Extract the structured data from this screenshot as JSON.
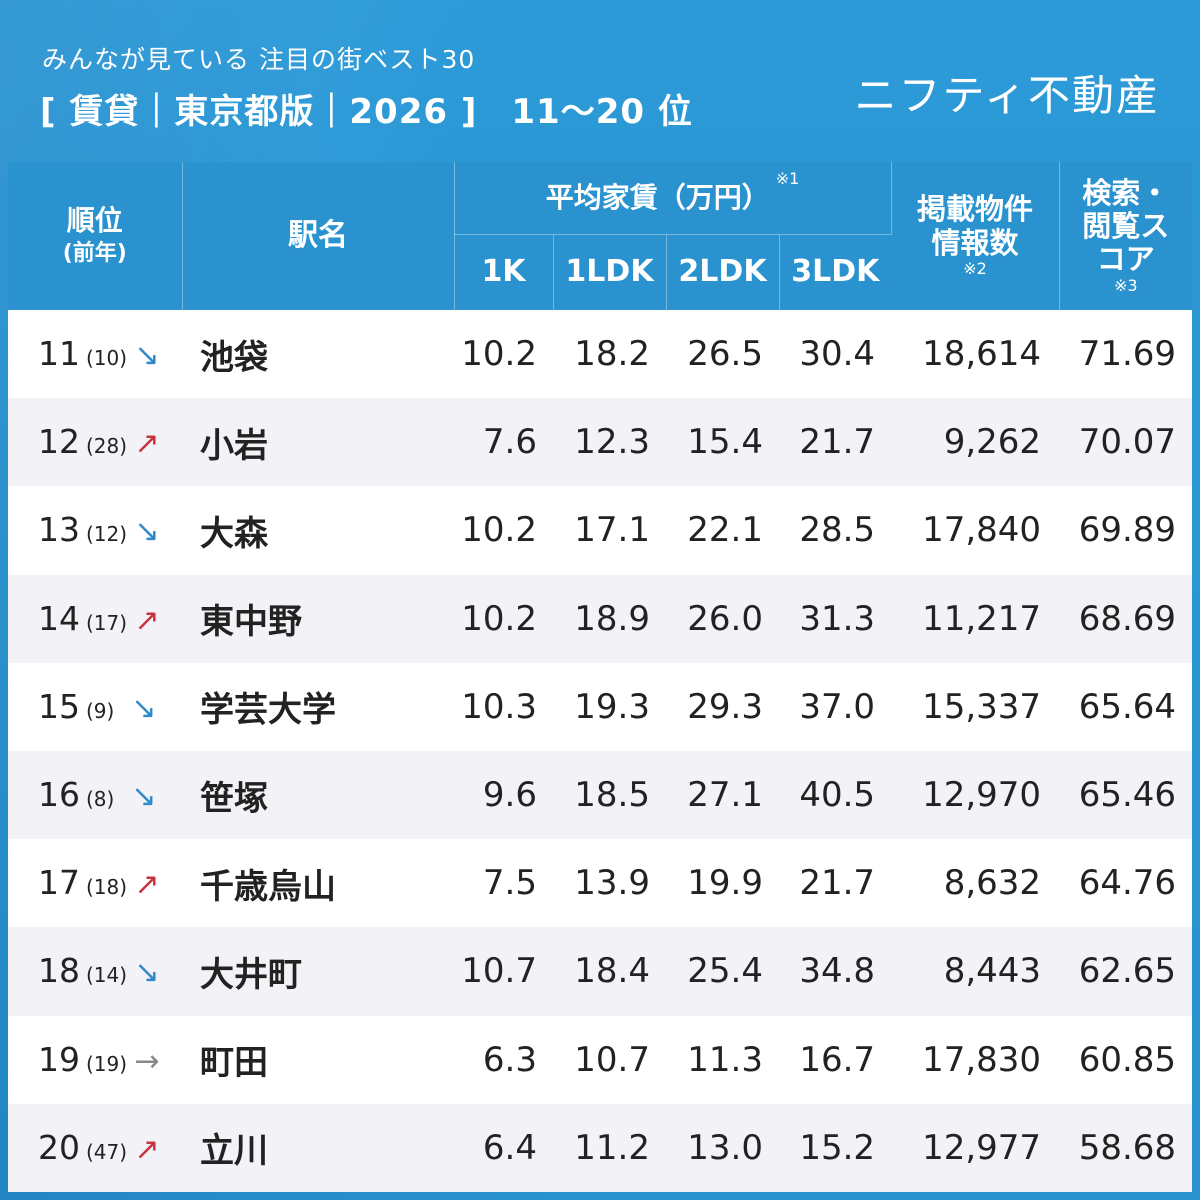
{
  "header": {
    "subtitle": "みんなが見ている 注目の街ベスト30",
    "title_main": "[ 賃貸｜東京都版｜2026 ]",
    "title_range": "11～20 位",
    "brand": "ニフティ不動産"
  },
  "table": {
    "col_rank": "順位",
    "col_rank_sub": "(前年)",
    "col_station": "駅名",
    "col_rent": "平均家賃（万円）",
    "col_rent_note": "※1",
    "col_1k": "1K",
    "col_1ldk": "1LDK",
    "col_2ldk": "2LDK",
    "col_3ldk": "3LDK",
    "col_listings": "掲載物件情報数",
    "col_listings_note": "※2",
    "col_score": "検索・閲覧スコア",
    "col_score_note": "※3",
    "rows": [
      {
        "rank": "11",
        "prev": "(10)",
        "trend": "down",
        "trend_icon": "↘",
        "station": "池袋",
        "r1k": "10.2",
        "r1ldk": "18.2",
        "r2ldk": "26.5",
        "r3ldk": "30.4",
        "listings": "18,614",
        "score": "71.69"
      },
      {
        "rank": "12",
        "prev": "(28)",
        "trend": "up",
        "trend_icon": "↗",
        "station": "小岩",
        "r1k": "7.6",
        "r1ldk": "12.3",
        "r2ldk": "15.4",
        "r3ldk": "21.7",
        "listings": "9,262",
        "score": "70.07"
      },
      {
        "rank": "13",
        "prev": "(12)",
        "trend": "down",
        "trend_icon": "↘",
        "station": "大森",
        "r1k": "10.2",
        "r1ldk": "17.1",
        "r2ldk": "22.1",
        "r3ldk": "28.5",
        "listings": "17,840",
        "score": "69.89"
      },
      {
        "rank": "14",
        "prev": "(17)",
        "trend": "up",
        "trend_icon": "↗",
        "station": "東中野",
        "r1k": "10.2",
        "r1ldk": "18.9",
        "r2ldk": "26.0",
        "r3ldk": "31.3",
        "listings": "11,217",
        "score": "68.69"
      },
      {
        "rank": "15",
        "prev": "(9)",
        "trend": "down",
        "trend_icon": "↘",
        "station": "学芸大学",
        "r1k": "10.3",
        "r1ldk": "19.3",
        "r2ldk": "29.3",
        "r3ldk": "37.0",
        "listings": "15,337",
        "score": "65.64"
      },
      {
        "rank": "16",
        "prev": "(8)",
        "trend": "down",
        "trend_icon": "↘",
        "station": "笹塚",
        "r1k": "9.6",
        "r1ldk": "18.5",
        "r2ldk": "27.1",
        "r3ldk": "40.5",
        "listings": "12,970",
        "score": "65.46"
      },
      {
        "rank": "17",
        "prev": "(18)",
        "trend": "up",
        "trend_icon": "↗",
        "station": "千歳烏山",
        "r1k": "7.5",
        "r1ldk": "13.9",
        "r2ldk": "19.9",
        "r3ldk": "21.7",
        "listings": "8,632",
        "score": "64.76"
      },
      {
        "rank": "18",
        "prev": "(14)",
        "trend": "down",
        "trend_icon": "↘",
        "station": "大井町",
        "r1k": "10.7",
        "r1ldk": "18.4",
        "r2ldk": "25.4",
        "r3ldk": "34.8",
        "listings": "8,443",
        "score": "62.65"
      },
      {
        "rank": "19",
        "prev": "(19)",
        "trend": "flat",
        "trend_icon": "→",
        "station": "町田",
        "r1k": "6.3",
        "r1ldk": "10.7",
        "r2ldk": "11.3",
        "r3ldk": "16.7",
        "listings": "17,830",
        "score": "60.85"
      },
      {
        "rank": "20",
        "prev": "(47)",
        "trend": "up",
        "trend_icon": "↗",
        "station": "立川",
        "r1k": "6.4",
        "r1ldk": "11.2",
        "r2ldk": "13.0",
        "r3ldk": "15.2",
        "listings": "12,977",
        "score": "58.68"
      }
    ]
  },
  "colors": {
    "background": "#2a96d3",
    "header_cell": "#2a93cf",
    "trend_down": "#2f8ac8",
    "trend_up": "#c6343f",
    "trend_flat": "#888888"
  }
}
